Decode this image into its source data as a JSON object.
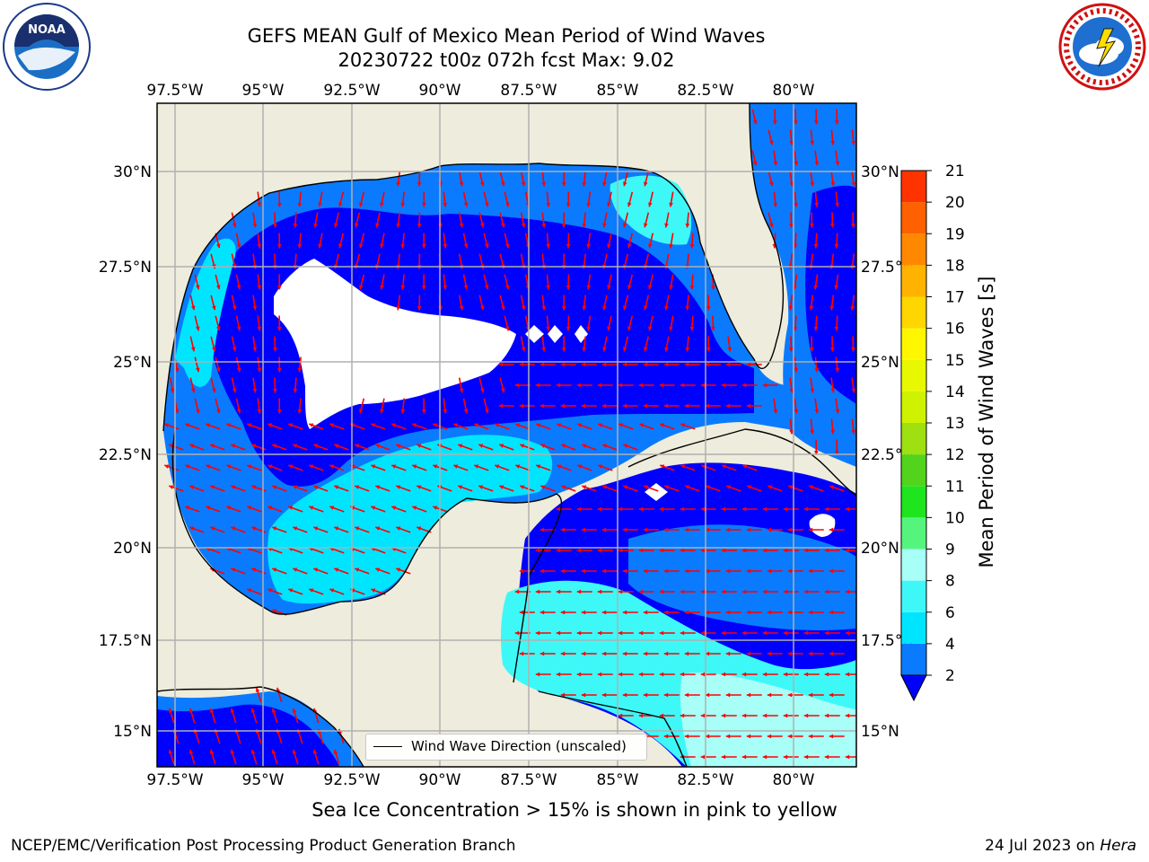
{
  "title_line1": "GEFS MEAN Gulf of Mexico Mean Period of Wind Waves",
  "title_line2": "20230722 t00z 072h fcst   Max: 9.02",
  "logos": {
    "left": "noaa-logo",
    "right": "nws-logo"
  },
  "noaa_logo_text": "NOAA",
  "lon_ticks": [
    "97.5°W",
    "95°W",
    "92.5°W",
    "90°W",
    "87.5°W",
    "85°W",
    "82.5°W",
    "80°W"
  ],
  "lat_ticks": [
    "30°N",
    "27.5°N",
    "25°N",
    "22.5°N",
    "20°N",
    "17.5°N",
    "15°N"
  ],
  "legend_label": "Wind Wave Direction (unscaled)",
  "colorbar": {
    "label": "Mean Period of Wind Waves [s]",
    "ticks": [
      "2",
      "4",
      "6",
      "8",
      "9",
      "10",
      "11",
      "12",
      "13",
      "14",
      "15",
      "16",
      "17",
      "18",
      "19",
      "20",
      "21"
    ],
    "colors": [
      "#0a7bff",
      "#00e5ff",
      "#3ef8f8",
      "#a8fff8",
      "#55f57d",
      "#1ee51e",
      "#52d41c",
      "#9ee010",
      "#cef200",
      "#e8f800",
      "#fff700",
      "#ffd600",
      "#ffb300",
      "#ff8800",
      "#ff6000",
      "#ff3300",
      "#ff0000"
    ],
    "under_color": "#0000ff"
  },
  "map_colors": {
    "land": "#eeecdc",
    "level_2_4": "#0a7bff",
    "under_2": "#0000ff",
    "level_4_6": "#00e5ff",
    "level_6_8": "#3ef8f8",
    "level_8_9": "#a8fff8",
    "arrows": "#ff0000"
  },
  "note": "Sea Ice Concentration > 15% is shown in pink to yellow",
  "footer_left": "NCEP/EMC/Verification Post Processing Product Generation Branch",
  "footer_right_date": "24 Jul 2023 on ",
  "footer_right_host": "Hera"
}
